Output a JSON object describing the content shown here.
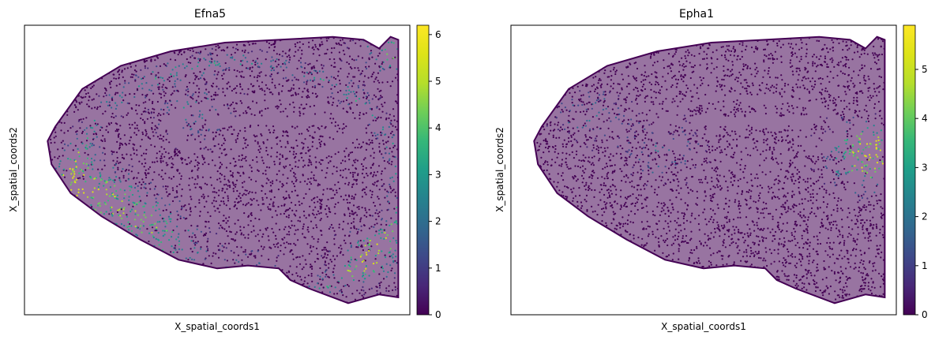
{
  "chart_data": [
    {
      "type": "scatter",
      "title": "Efna5",
      "xlabel": "X_spatial_coords1",
      "ylabel": "X_spatial_coords2",
      "xticks": [],
      "yticks": [],
      "colorbar": {
        "colormap": "viridis",
        "min": 0,
        "max": 6.2,
        "ticks": [
          0,
          1,
          2,
          3,
          4,
          5,
          6
        ]
      },
      "description_points": "Dense spatial transcriptomics scatter of a mouse brain hemisphere section; mostly low (dark purple) values, higher expression (green/teal 3-5) concentrated along the outer cortical band and the lower-right corner.",
      "hotspots": [
        {
          "x": 0.55,
          "y": 0.88,
          "level": 4.2
        },
        {
          "x": 0.35,
          "y": 0.74,
          "level": 3.8
        },
        {
          "x": 0.14,
          "y": 0.55,
          "level": 3.9
        },
        {
          "x": 0.25,
          "y": 0.62,
          "level": 3.5
        },
        {
          "x": 0.97,
          "y": 0.08,
          "level": 4.5
        },
        {
          "x": 0.9,
          "y": 0.8,
          "level": 3.5
        },
        {
          "x": 0.45,
          "y": 0.3,
          "level": 3.0
        }
      ]
    },
    {
      "type": "scatter",
      "title": "Epha1",
      "xlabel": "X_spatial_coords1",
      "ylabel": "X_spatial_coords2",
      "xticks": [],
      "yticks": [],
      "colorbar": {
        "colormap": "viridis",
        "min": 0,
        "max": 5.9,
        "ticks": [
          0,
          1,
          2,
          3,
          4,
          5
        ]
      },
      "description_points": "Same tissue section; expression mostly zero (dark purple) with sparse green points concentrated in a right-central region.",
      "hotspots": [
        {
          "x": 0.92,
          "y": 0.48,
          "level": 3.6
        },
        {
          "x": 0.96,
          "y": 0.4,
          "level": 3.3
        },
        {
          "x": 0.4,
          "y": 0.44,
          "level": 2.5
        },
        {
          "x": 0.2,
          "y": 0.3,
          "level": 2.2
        }
      ]
    }
  ]
}
